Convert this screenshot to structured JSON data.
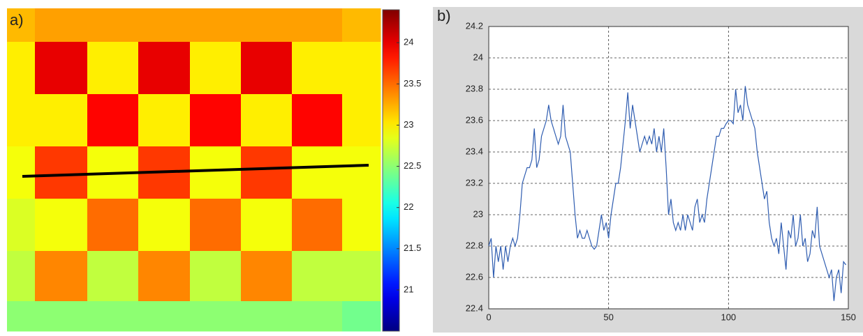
{
  "chart_data": [
    {
      "type": "heatmap",
      "label": "a)",
      "colormap": "jet",
      "clim": [
        20.5,
        24.4
      ],
      "colorbar_ticks": [
        21,
        21.5,
        22,
        22.5,
        23,
        23.5,
        24
      ],
      "values": [
        [
          23.2,
          23.3,
          23.3,
          23.3,
          23.3,
          23.3,
          23.3,
          23.2,
          23.1
        ],
        [
          23.0,
          24.0,
          23.0,
          24.0,
          23.0,
          24.0,
          23.0,
          23.0,
          23.0
        ],
        [
          23.0,
          23.0,
          23.9,
          23.0,
          23.9,
          23.0,
          23.9,
          23.0,
          22.9
        ],
        [
          22.9,
          23.7,
          22.9,
          23.7,
          22.9,
          23.7,
          22.9,
          22.9,
          22.8
        ],
        [
          22.8,
          22.9,
          23.5,
          22.9,
          23.5,
          22.9,
          23.5,
          22.9,
          22.7
        ],
        [
          22.7,
          23.4,
          22.7,
          23.4,
          22.7,
          23.4,
          22.7,
          22.7,
          22.6
        ],
        [
          22.5,
          22.5,
          22.5,
          22.5,
          22.5,
          22.5,
          22.5,
          22.4,
          22.4
        ]
      ]
    },
    {
      "type": "line",
      "label": "b)",
      "color": "#2e5cb0",
      "grid": true,
      "xlim": [
        0,
        150
      ],
      "xticks": [
        0,
        50,
        100,
        150
      ],
      "ylim": [
        22.4,
        24.2
      ],
      "yticks": [
        22.4,
        22.6,
        22.8,
        23,
        23.2,
        23.4,
        23.6,
        23.8,
        24,
        24.2
      ],
      "x": [
        0,
        1,
        2,
        3,
        4,
        5,
        6,
        7,
        8,
        9,
        10,
        11,
        12,
        13,
        14,
        15,
        16,
        17,
        18,
        19,
        20,
        21,
        22,
        23,
        24,
        25,
        26,
        27,
        28,
        29,
        30,
        31,
        32,
        33,
        34,
        35,
        36,
        37,
        38,
        39,
        40,
        41,
        42,
        43,
        44,
        45,
        46,
        47,
        48,
        49,
        50,
        51,
        52,
        53,
        54,
        55,
        56,
        57,
        58,
        59,
        60,
        61,
        62,
        63,
        64,
        65,
        66,
        67,
        68,
        69,
        70,
        71,
        72,
        73,
        74,
        75,
        76,
        77,
        78,
        79,
        80,
        81,
        82,
        83,
        84,
        85,
        86,
        87,
        88,
        89,
        90,
        91,
        92,
        93,
        94,
        95,
        96,
        97,
        98,
        99,
        100,
        101,
        102,
        103,
        104,
        105,
        106,
        107,
        108,
        109,
        110,
        111,
        112,
        113,
        114,
        115,
        116,
        117,
        118,
        119,
        120,
        121,
        122,
        123,
        124,
        125,
        126,
        127,
        128,
        129,
        130,
        131,
        132,
        133,
        134,
        135,
        136,
        137,
        138,
        139,
        140,
        141,
        142,
        143,
        144,
        145,
        146,
        147,
        148,
        149
      ],
      "values": [
        22.8,
        22.85,
        22.6,
        22.8,
        22.7,
        22.8,
        22.65,
        22.8,
        22.7,
        22.8,
        22.85,
        22.8,
        22.85,
        23.0,
        23.2,
        23.25,
        23.3,
        23.3,
        23.35,
        23.55,
        23.3,
        23.35,
        23.5,
        23.55,
        23.6,
        23.7,
        23.6,
        23.55,
        23.5,
        23.45,
        23.5,
        23.7,
        23.5,
        23.45,
        23.4,
        23.2,
        23.0,
        22.85,
        22.9,
        22.85,
        22.85,
        22.9,
        22.85,
        22.8,
        22.78,
        22.8,
        22.9,
        23.0,
        22.9,
        22.95,
        22.85,
        23.0,
        23.1,
        23.2,
        23.2,
        23.3,
        23.45,
        23.6,
        23.78,
        23.55,
        23.7,
        23.6,
        23.5,
        23.4,
        23.45,
        23.5,
        23.45,
        23.5,
        23.45,
        23.55,
        23.4,
        23.5,
        23.4,
        23.55,
        23.3,
        23.0,
        23.1,
        22.95,
        22.9,
        22.95,
        22.9,
        23.0,
        22.9,
        23.0,
        22.95,
        22.9,
        23.05,
        23.1,
        22.95,
        23.0,
        22.95,
        23.1,
        23.2,
        23.3,
        23.4,
        23.5,
        23.5,
        23.55,
        23.55,
        23.58,
        23.6,
        23.6,
        23.58,
        23.8,
        23.65,
        23.7,
        23.6,
        23.82,
        23.7,
        23.65,
        23.6,
        23.55,
        23.4,
        23.3,
        23.2,
        23.1,
        23.15,
        22.95,
        22.85,
        22.8,
        22.85,
        22.75,
        22.95,
        22.8,
        22.65,
        22.9,
        22.85,
        23.0,
        22.8,
        22.85,
        23.0,
        22.8,
        22.85,
        22.7,
        22.75,
        22.9,
        22.85,
        23.05,
        22.8,
        22.75,
        22.7,
        22.65,
        22.6,
        22.65,
        22.45,
        22.6,
        22.65,
        22.5,
        22.7,
        22.68
      ]
    }
  ]
}
